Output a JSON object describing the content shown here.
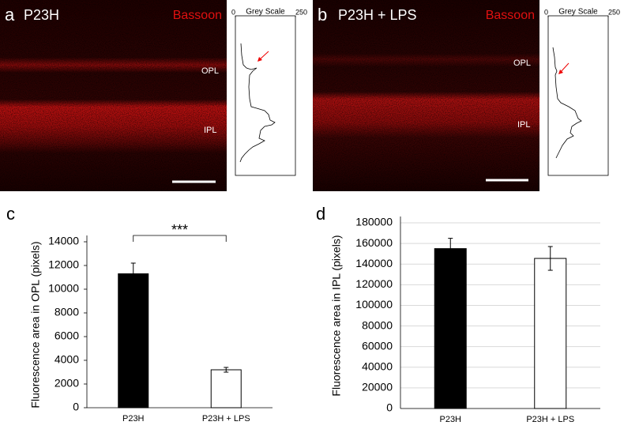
{
  "panels": [
    {
      "letter": "a",
      "label": "P23H",
      "stain": "Bassoon",
      "layers": [
        "OPL",
        "IPL"
      ],
      "profile": {
        "axis_label": "Grey Scale",
        "xlim": [
          0,
          250
        ],
        "xticks": [
          0,
          250
        ]
      }
    },
    {
      "letter": "b",
      "label": "P23H + LPS",
      "stain": "Bassoon",
      "layers": [
        "OPL",
        "IPL"
      ],
      "profile": {
        "axis_label": "Grey Scale",
        "xlim": [
          0,
          250
        ],
        "xticks": [
          0,
          250
        ]
      }
    }
  ],
  "chart_data": [
    {
      "type": "bar",
      "panel_letter": "c",
      "y_label": "Fluorescence area in OPL (pixels)",
      "categories": [
        "P23H",
        "P23H + LPS"
      ],
      "values": [
        11300,
        3200
      ],
      "errors": [
        900,
        200
      ],
      "colors": [
        "#000000",
        "#ffffff"
      ],
      "ylim": [
        0,
        14000
      ],
      "yticks": [
        0,
        2000,
        4000,
        6000,
        8000,
        10000,
        12000,
        14000
      ],
      "grid": false,
      "significance": "***"
    },
    {
      "type": "bar",
      "panel_letter": "d",
      "y_label": "Fluorescence area in IPL (pixels)",
      "categories": [
        "P23H",
        "P23H + LPS"
      ],
      "values": [
        155000,
        145500
      ],
      "errors": [
        10000,
        11500
      ],
      "colors": [
        "#000000",
        "#ffffff"
      ],
      "ylim": [
        0,
        180000
      ],
      "yticks": [
        0,
        20000,
        40000,
        60000,
        80000,
        100000,
        120000,
        140000,
        160000,
        180000
      ],
      "grid": true
    }
  ]
}
